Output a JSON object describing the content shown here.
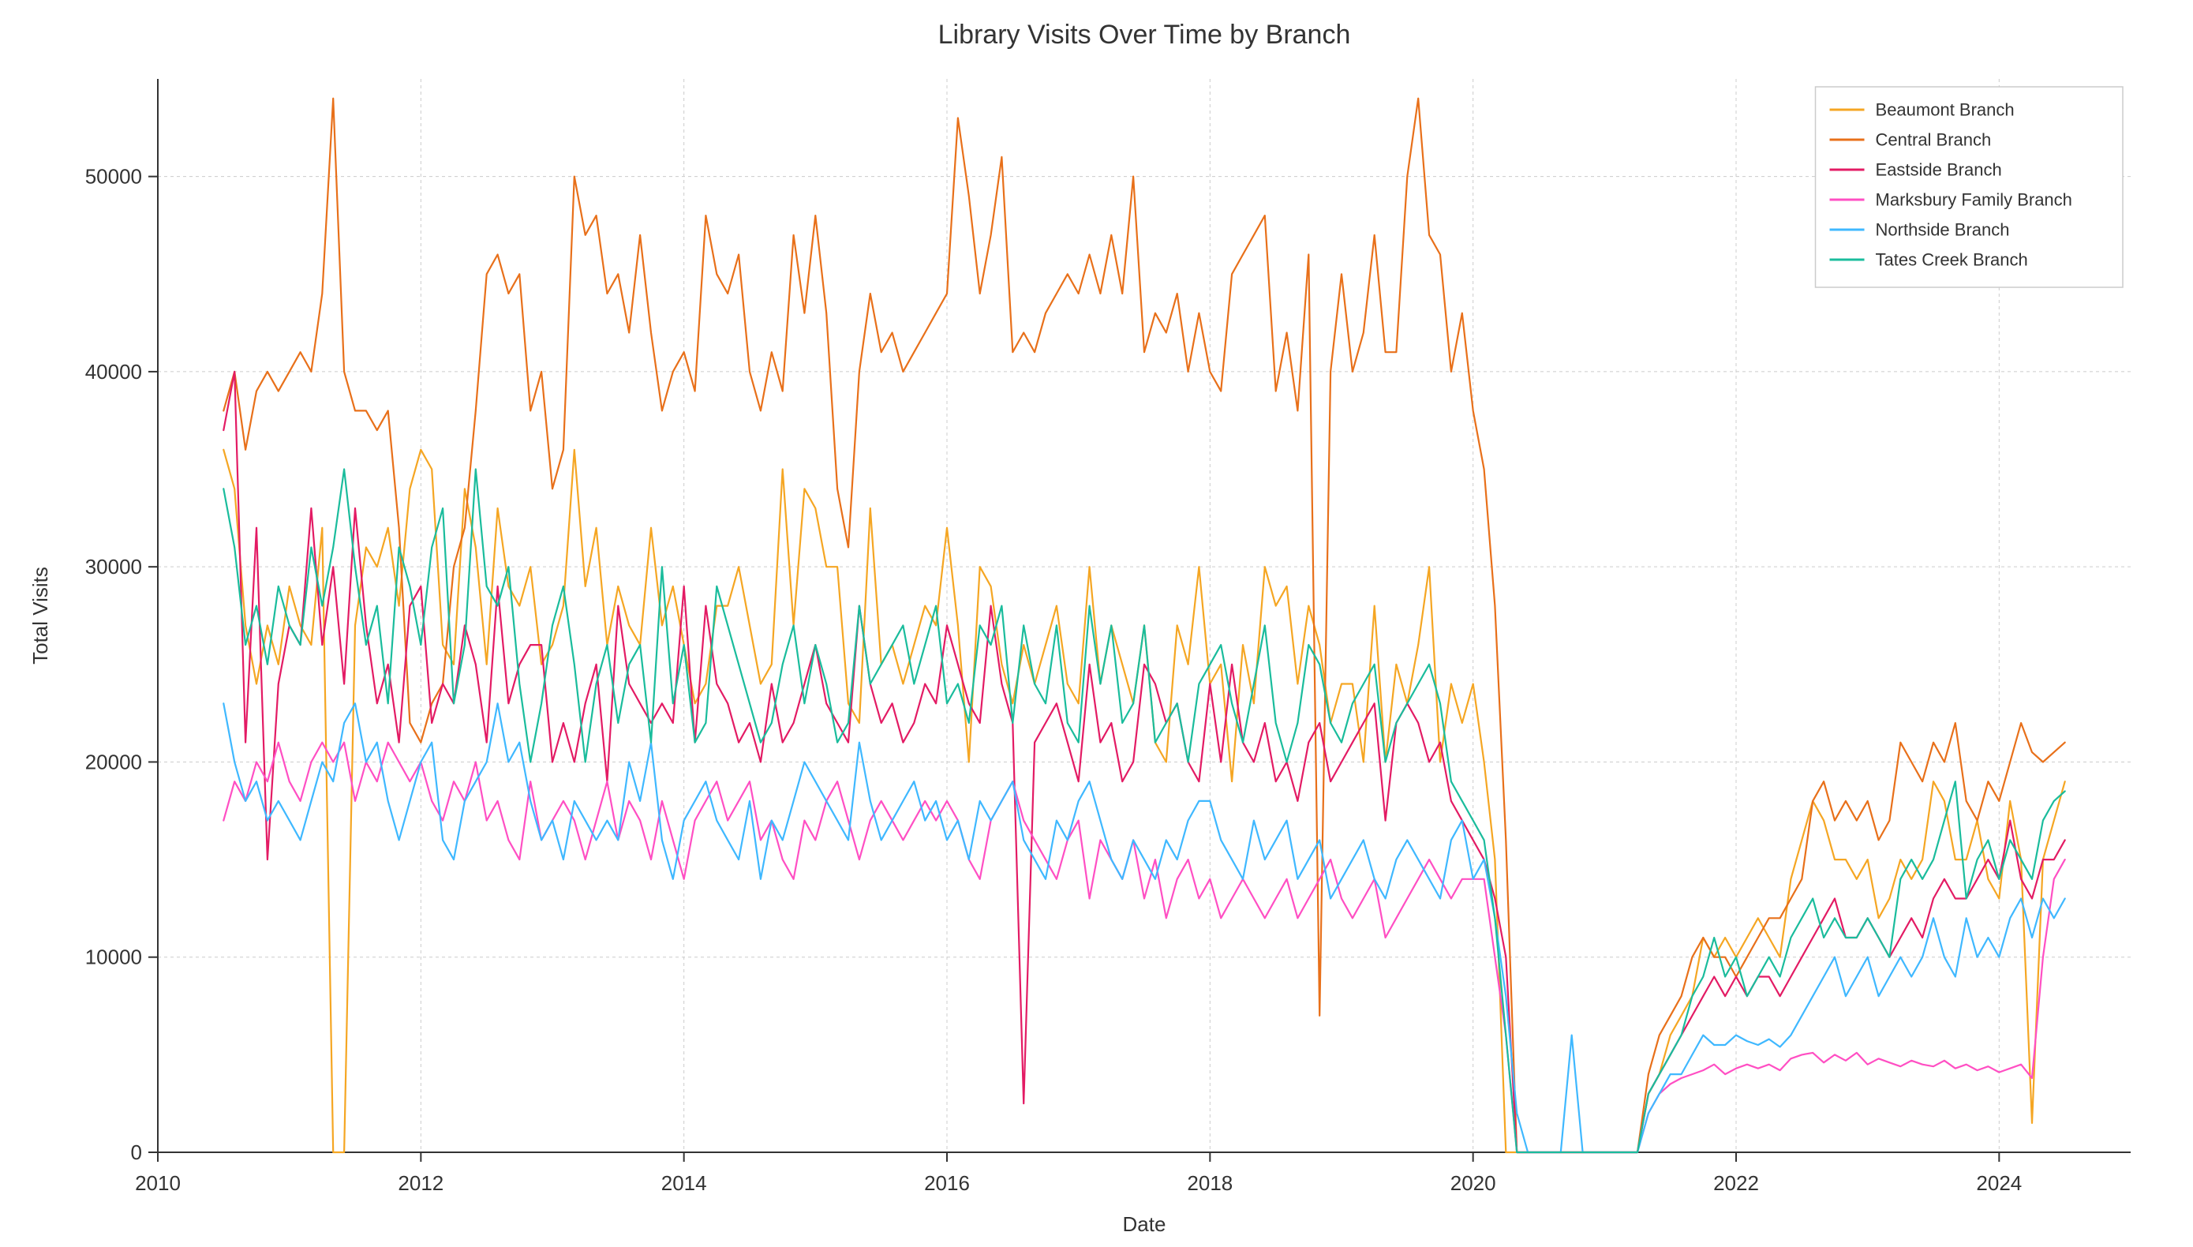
{
  "chart": {
    "type": "line",
    "title": "Library Visits Over Time by Branch",
    "title_fontsize": 34,
    "title_color": "#333333",
    "xlabel": "Date",
    "ylabel": "Total Visits",
    "label_fontsize": 26,
    "label_color": "#333333",
    "background_color": "#ffffff",
    "grid_color": "#cccccc",
    "grid_dash": "4 4",
    "axis_color": "#333333",
    "tick_fontsize": 26,
    "tick_color": "#333333",
    "line_width": 2.2,
    "x_start_year": 2010,
    "x_end_year": 2025,
    "x_tick_years": [
      2010,
      2012,
      2014,
      2016,
      2018,
      2020,
      2022,
      2024
    ],
    "ylim": [
      0,
      55000
    ],
    "y_ticks": [
      0,
      10000,
      20000,
      30000,
      40000,
      50000
    ],
    "data_start_year_frac": 2010.5,
    "data_step_years": 0.0833333,
    "legend": {
      "border_color": "#cccccc",
      "bg_color": "#ffffff",
      "fontsize": 22,
      "text_color": "#333333",
      "position": "top-right"
    },
    "series": [
      {
        "name": "Beaumont Branch",
        "color": "#f5a623",
        "values": [
          36000,
          34000,
          27000,
          24000,
          27000,
          25000,
          29000,
          27000,
          26000,
          32000,
          0,
          0,
          27000,
          31000,
          30000,
          32000,
          28000,
          34000,
          36000,
          35000,
          26000,
          25000,
          34000,
          31000,
          25000,
          33000,
          29000,
          28000,
          30000,
          25000,
          26000,
          28000,
          36000,
          29000,
          32000,
          26000,
          29000,
          27000,
          26000,
          32000,
          27000,
          29000,
          26000,
          23000,
          24000,
          28000,
          28000,
          30000,
          27000,
          24000,
          25000,
          35000,
          27000,
          34000,
          33000,
          30000,
          30000,
          23000,
          22000,
          33000,
          25000,
          26000,
          24000,
          26000,
          28000,
          27000,
          32000,
          27000,
          20000,
          30000,
          29000,
          25000,
          23000,
          26000,
          24000,
          26000,
          28000,
          24000,
          23000,
          30000,
          24000,
          27000,
          25000,
          23000,
          27000,
          21000,
          20000,
          27000,
          25000,
          30000,
          24000,
          25000,
          19000,
          26000,
          23000,
          30000,
          28000,
          29000,
          24000,
          28000,
          26000,
          22000,
          24000,
          24000,
          20000,
          28000,
          20000,
          25000,
          23000,
          26000,
          30000,
          20000,
          24000,
          22000,
          24000,
          20000,
          15000,
          0,
          0,
          0,
          0,
          0,
          0,
          0,
          0,
          0,
          0,
          0,
          0,
          0,
          3000,
          4000,
          6000,
          7000,
          8000,
          11000,
          10000,
          11000,
          10000,
          11000,
          12000,
          11000,
          10000,
          14000,
          16000,
          18000,
          17000,
          15000,
          15000,
          14000,
          15000,
          12000,
          13000,
          15000,
          14000,
          15000,
          19000,
          18000,
          15000,
          15000,
          17000,
          14000,
          13000,
          18000,
          15000,
          1500,
          15000,
          17000,
          19000
        ]
      },
      {
        "name": "Central Branch",
        "color": "#e8701a",
        "values": [
          38000,
          40000,
          36000,
          39000,
          40000,
          39000,
          40000,
          41000,
          40000,
          44000,
          54000,
          40000,
          38000,
          38000,
          37000,
          38000,
          32000,
          22000,
          21000,
          23000,
          24000,
          30000,
          32000,
          38000,
          45000,
          46000,
          44000,
          45000,
          38000,
          40000,
          34000,
          36000,
          50000,
          47000,
          48000,
          44000,
          45000,
          42000,
          47000,
          42000,
          38000,
          40000,
          41000,
          39000,
          48000,
          45000,
          44000,
          46000,
          40000,
          38000,
          41000,
          39000,
          47000,
          43000,
          48000,
          43000,
          34000,
          31000,
          40000,
          44000,
          41000,
          42000,
          40000,
          41000,
          42000,
          43000,
          44000,
          53000,
          49000,
          44000,
          47000,
          51000,
          41000,
          42000,
          41000,
          43000,
          44000,
          45000,
          44000,
          46000,
          44000,
          47000,
          44000,
          50000,
          41000,
          43000,
          42000,
          44000,
          40000,
          43000,
          40000,
          39000,
          45000,
          46000,
          47000,
          48000,
          39000,
          42000,
          38000,
          46000,
          7000,
          40000,
          45000,
          40000,
          42000,
          47000,
          41000,
          41000,
          50000,
          54000,
          47000,
          46000,
          40000,
          43000,
          38000,
          35000,
          28000,
          16000,
          0,
          0,
          0,
          0,
          0,
          0,
          0,
          0,
          0,
          0,
          0,
          0,
          4000,
          6000,
          7000,
          8000,
          10000,
          11000,
          10000,
          10000,
          9000,
          10000,
          11000,
          12000,
          12000,
          13000,
          14000,
          18000,
          19000,
          17000,
          18000,
          17000,
          18000,
          16000,
          17000,
          21000,
          20000,
          19000,
          21000,
          20000,
          22000,
          18000,
          17000,
          19000,
          18000,
          20000,
          22000,
          20500,
          20000,
          20500,
          21000
        ]
      },
      {
        "name": "Eastside Branch",
        "color": "#e31b64",
        "values": [
          37000,
          40000,
          21000,
          32000,
          15000,
          24000,
          27000,
          26000,
          33000,
          26000,
          30000,
          24000,
          33000,
          27000,
          23000,
          25000,
          21000,
          28000,
          29000,
          22000,
          24000,
          23000,
          27000,
          25000,
          21000,
          29000,
          23000,
          25000,
          26000,
          26000,
          20000,
          22000,
          20000,
          23000,
          25000,
          19000,
          28000,
          24000,
          23000,
          22000,
          23000,
          22000,
          29000,
          21000,
          28000,
          24000,
          23000,
          21000,
          22000,
          20000,
          24000,
          21000,
          22000,
          24000,
          26000,
          23000,
          22000,
          21000,
          28000,
          24000,
          22000,
          23000,
          21000,
          22000,
          24000,
          23000,
          27000,
          25000,
          23000,
          22000,
          28000,
          24000,
          22000,
          2500,
          21000,
          22000,
          23000,
          21000,
          19000,
          25000,
          21000,
          22000,
          19000,
          20000,
          25000,
          24000,
          22000,
          23000,
          20000,
          19000,
          24000,
          20000,
          25000,
          21000,
          20000,
          22000,
          19000,
          20000,
          18000,
          21000,
          22000,
          19000,
          20000,
          21000,
          22000,
          23000,
          17000,
          22000,
          23000,
          22000,
          20000,
          21000,
          18000,
          17000,
          16000,
          15000,
          13000,
          10000,
          0,
          0,
          0,
          0,
          0,
          0,
          0,
          0,
          0,
          0,
          0,
          0,
          3000,
          4000,
          5000,
          6000,
          7000,
          8000,
          9000,
          8000,
          9000,
          8000,
          9000,
          9000,
          8000,
          9000,
          10000,
          11000,
          12000,
          13000,
          11000,
          11000,
          12000,
          11000,
          10000,
          11000,
          12000,
          11000,
          13000,
          14000,
          13000,
          13000,
          14000,
          15000,
          14000,
          17000,
          14000,
          13000,
          15000,
          15000,
          16000
        ]
      },
      {
        "name": "Marksbury Family Branch",
        "color": "#ff4fc3",
        "values": [
          17000,
          19000,
          18000,
          20000,
          19000,
          21000,
          19000,
          18000,
          20000,
          21000,
          20000,
          21000,
          18000,
          20000,
          19000,
          21000,
          20000,
          19000,
          20000,
          18000,
          17000,
          19000,
          18000,
          20000,
          17000,
          18000,
          16000,
          15000,
          19000,
          16000,
          17000,
          18000,
          17000,
          15000,
          17000,
          19000,
          16000,
          18000,
          17000,
          15000,
          18000,
          16000,
          14000,
          17000,
          18000,
          19000,
          17000,
          18000,
          19000,
          16000,
          17000,
          15000,
          14000,
          17000,
          16000,
          18000,
          19000,
          17000,
          15000,
          17000,
          18000,
          17000,
          16000,
          17000,
          18000,
          17000,
          18000,
          17000,
          15000,
          14000,
          17000,
          18000,
          19000,
          17000,
          16000,
          15000,
          14000,
          16000,
          17000,
          13000,
          16000,
          15000,
          14000,
          16000,
          13000,
          15000,
          12000,
          14000,
          15000,
          13000,
          14000,
          12000,
          13000,
          14000,
          13000,
          12000,
          13000,
          14000,
          12000,
          13000,
          14000,
          15000,
          13000,
          12000,
          13000,
          14000,
          11000,
          12000,
          13000,
          14000,
          15000,
          14000,
          13000,
          14000,
          14000,
          14000,
          10000,
          6000,
          0,
          0,
          0,
          0,
          0,
          0,
          0,
          0,
          0,
          0,
          0,
          0,
          2000,
          3000,
          3500,
          3800,
          4000,
          4200,
          4500,
          4000,
          4300,
          4500,
          4300,
          4500,
          4200,
          4800,
          5000,
          5100,
          4600,
          5000,
          4700,
          5100,
          4500,
          4800,
          4600,
          4400,
          4700,
          4500,
          4400,
          4700,
          4300,
          4500,
          4200,
          4400,
          4100,
          4300,
          4500,
          3800,
          10000,
          14000,
          15000
        ]
      },
      {
        "name": "Northside Branch",
        "color": "#3fb8ff",
        "values": [
          23000,
          20000,
          18000,
          19000,
          17000,
          18000,
          17000,
          16000,
          18000,
          20000,
          19000,
          22000,
          23000,
          20000,
          21000,
          18000,
          16000,
          18000,
          20000,
          21000,
          16000,
          15000,
          18000,
          19000,
          20000,
          23000,
          20000,
          21000,
          18000,
          16000,
          17000,
          15000,
          18000,
          17000,
          16000,
          17000,
          16000,
          20000,
          18000,
          21000,
          16000,
          14000,
          17000,
          18000,
          19000,
          17000,
          16000,
          15000,
          18000,
          14000,
          17000,
          16000,
          18000,
          20000,
          19000,
          18000,
          17000,
          16000,
          21000,
          18000,
          16000,
          17000,
          18000,
          19000,
          17000,
          18000,
          16000,
          17000,
          15000,
          18000,
          17000,
          18000,
          19000,
          16000,
          15000,
          14000,
          17000,
          16000,
          18000,
          19000,
          17000,
          15000,
          14000,
          16000,
          15000,
          14000,
          16000,
          15000,
          17000,
          18000,
          18000,
          16000,
          15000,
          14000,
          17000,
          15000,
          16000,
          17000,
          14000,
          15000,
          16000,
          13000,
          14000,
          15000,
          16000,
          14000,
          13000,
          15000,
          16000,
          15000,
          14000,
          13000,
          16000,
          17000,
          14000,
          15000,
          12000,
          8000,
          2000,
          0,
          0,
          0,
          0,
          6000,
          0,
          0,
          0,
          0,
          0,
          0,
          2000,
          3000,
          4000,
          4000,
          5000,
          6000,
          5500,
          5500,
          6000,
          5700,
          5500,
          5800,
          5400,
          6000,
          7000,
          8000,
          9000,
          10000,
          8000,
          9000,
          10000,
          8000,
          9000,
          10000,
          9000,
          10000,
          12000,
          10000,
          9000,
          12000,
          10000,
          11000,
          10000,
          12000,
          13000,
          11000,
          13000,
          12000,
          13000
        ]
      },
      {
        "name": "Tates Creek Branch",
        "color": "#1abc9c",
        "values": [
          34000,
          31000,
          26000,
          28000,
          25000,
          29000,
          27000,
          26000,
          31000,
          28000,
          31000,
          35000,
          30000,
          26000,
          28000,
          23000,
          31000,
          29000,
          26000,
          31000,
          33000,
          23000,
          26000,
          35000,
          29000,
          28000,
          30000,
          24000,
          20000,
          23000,
          27000,
          29000,
          25000,
          20000,
          24000,
          26000,
          22000,
          25000,
          26000,
          21000,
          30000,
          23000,
          26000,
          21000,
          22000,
          29000,
          27000,
          25000,
          23000,
          21000,
          22000,
          25000,
          27000,
          23000,
          26000,
          24000,
          21000,
          22000,
          28000,
          24000,
          25000,
          26000,
          27000,
          24000,
          26000,
          28000,
          23000,
          24000,
          22000,
          27000,
          26000,
          28000,
          22000,
          27000,
          24000,
          23000,
          27000,
          22000,
          21000,
          28000,
          24000,
          27000,
          22000,
          23000,
          27000,
          21000,
          22000,
          23000,
          20000,
          24000,
          25000,
          26000,
          23000,
          21000,
          24000,
          27000,
          22000,
          20000,
          22000,
          26000,
          25000,
          22000,
          21000,
          23000,
          24000,
          25000,
          20000,
          22000,
          23000,
          24000,
          25000,
          23000,
          19000,
          18000,
          17000,
          16000,
          12000,
          6000,
          0,
          0,
          0,
          0,
          0,
          0,
          0,
          0,
          0,
          0,
          0,
          0,
          3000,
          4000,
          5000,
          6000,
          8000,
          9000,
          11000,
          9000,
          10000,
          8000,
          9000,
          10000,
          9000,
          11000,
          12000,
          13000,
          11000,
          12000,
          11000,
          11000,
          12000,
          11000,
          10000,
          14000,
          15000,
          14000,
          15000,
          17000,
          19000,
          13000,
          15000,
          16000,
          14000,
          16000,
          15000,
          14000,
          17000,
          18000,
          18500
        ]
      }
    ]
  }
}
